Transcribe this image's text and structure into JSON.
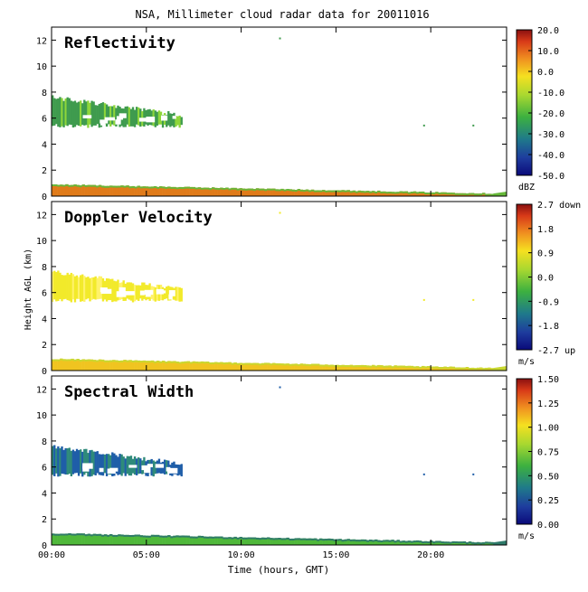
{
  "chart_data": {
    "type": "heatmap",
    "title": "NSA, Millimeter cloud radar data for 20011016",
    "xlabel": "Time (hours, GMT)",
    "ylabel": "Height AGL (km)",
    "xlim_hours": [
      0,
      24
    ],
    "ylim_km": [
      0,
      13
    ],
    "x_ticks": [
      {
        "value": 0,
        "label": "00:00"
      },
      {
        "value": 5,
        "label": "05:00"
      },
      {
        "value": 10,
        "label": "10:00"
      },
      {
        "value": 15,
        "label": "15:00"
      },
      {
        "value": 20,
        "label": "20:00"
      }
    ],
    "y_ticks": [
      0,
      2,
      4,
      6,
      8,
      10,
      12
    ],
    "grid": false,
    "panels": [
      {
        "name": "Reflectivity",
        "unit": "dBZ",
        "colorbar": {
          "min": -50,
          "max": 20,
          "ticks": [
            {
              "value": 20,
              "label": "20.0"
            },
            {
              "value": 10,
              "label": "10.0"
            },
            {
              "value": 0,
              "label": "0.0"
            },
            {
              "value": -10,
              "label": "-10.0"
            },
            {
              "value": -20,
              "label": "-20.0"
            },
            {
              "value": -30,
              "label": "-30.0"
            },
            {
              "value": -40,
              "label": "-40.0"
            },
            {
              "value": -50,
              "label": "-50.0"
            }
          ]
        },
        "upper_cloud_color": "#3f9b4e",
        "upper_cloud_highlight": "#8ed63a",
        "low_layer_color": "#e07b1a",
        "low_layer_top_color": "#66b83a"
      },
      {
        "name": "Doppler Velocity",
        "unit": "m/s",
        "colorbar": {
          "min": -2.7,
          "max": 2.7,
          "ticks": [
            {
              "value": 2.7,
              "label": "2.7 down"
            },
            {
              "value": 1.8,
              "label": "1.8"
            },
            {
              "value": 0.9,
              "label": "0.9"
            },
            {
              "value": 0.0,
              "label": "0.0"
            },
            {
              "value": -0.9,
              "label": "-0.9"
            },
            {
              "value": -1.8,
              "label": "-1.8"
            },
            {
              "value": -2.7,
              "label": "-2.7 up"
            }
          ]
        },
        "upper_cloud_color": "#f2ea2a",
        "upper_cloud_highlight": "#fff26a",
        "low_layer_color": "#f0c420",
        "low_layer_top_color": "#c8d830"
      },
      {
        "name": "Spectral Width",
        "unit": "m/s",
        "colorbar": {
          "min": 0.0,
          "max": 1.5,
          "ticks": [
            {
              "value": 1.5,
              "label": "1.50"
            },
            {
              "value": 1.25,
              "label": "1.25"
            },
            {
              "value": 1.0,
              "label": "1.00"
            },
            {
              "value": 0.75,
              "label": "0.75"
            },
            {
              "value": 0.5,
              "label": "0.50"
            },
            {
              "value": 0.25,
              "label": "0.25"
            },
            {
              "value": 0.0,
              "label": "0.00"
            }
          ]
        },
        "upper_cloud_color": "#1f5ea8",
        "upper_cloud_highlight": "#2e8a7a",
        "low_layer_color": "#4fb83a",
        "low_layer_top_color": "#2f7a6a"
      }
    ],
    "features": {
      "upper_cloud": {
        "start_hour": 0.0,
        "end_hour": 6.9,
        "base_km_start": 5.4,
        "top_km_start": 7.6,
        "base_km_end": 5.4,
        "top_km_end": 6.2
      },
      "low_layer": {
        "start_hour": 0.0,
        "end_hour": 23.3,
        "top_km_start": 0.9,
        "top_km_end": 0.2
      },
      "isolated_echoes": [
        {
          "hour": 12.0,
          "km": 12.2
        },
        {
          "hour": 22.2,
          "km": 5.5
        },
        {
          "hour": 19.6,
          "km": 5.5
        }
      ]
    }
  }
}
